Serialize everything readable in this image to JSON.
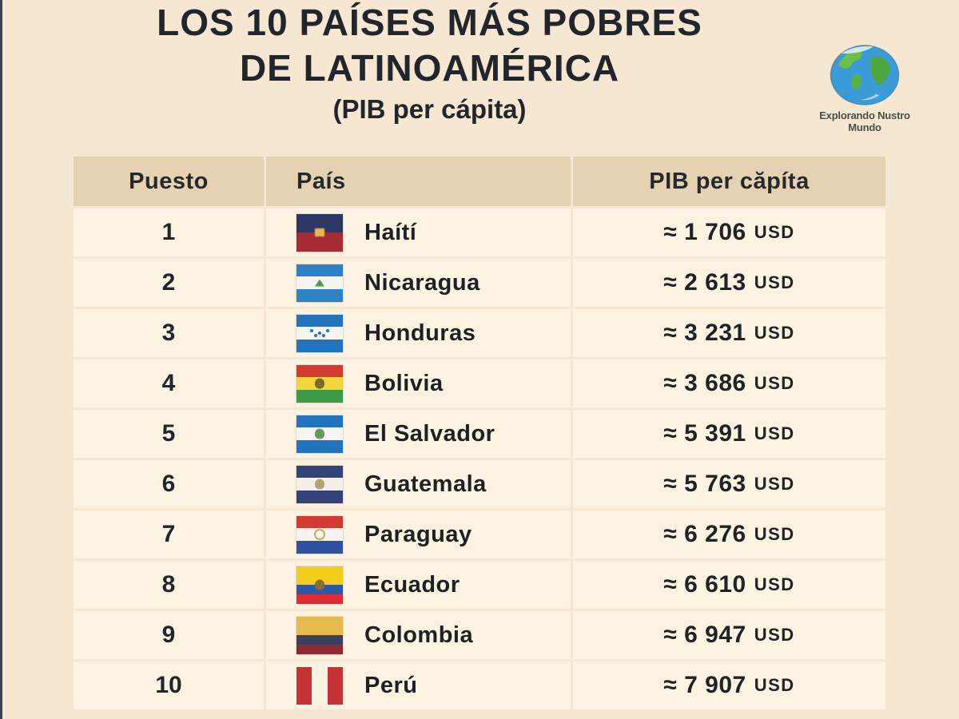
{
  "theme": {
    "page_bg": "#f5e7d2",
    "header_bg": "#e4d2b2",
    "cell_bg": "#fcf2e2",
    "text_color": "#23252d"
  },
  "header": {
    "title_line1": "LOS 10 PAÍSES MÁS POBRES",
    "title_line2": "DE LATINOAMÉRICA",
    "subtitle": "(PIB per cápita)",
    "logo": {
      "icon": "globe-earth-icon",
      "caption_line1": "Explorando Nustro",
      "caption_line2": "Mundo"
    }
  },
  "table": {
    "columns": [
      "Puesto",
      "País",
      "PIB per căpíta"
    ],
    "rows": [
      {
        "rank": "1",
        "country": "Haítí",
        "flag": "haiti",
        "value": "≈ 1 706",
        "currency": "USD"
      },
      {
        "rank": "2",
        "country": "Nicaragua",
        "flag": "nicaragua",
        "value": "≈ 2 613",
        "currency": "USD"
      },
      {
        "rank": "3",
        "country": "Honduras",
        "flag": "honduras",
        "value": "≈ 3 231",
        "currency": "USD"
      },
      {
        "rank": "4",
        "country": "Bolivia",
        "flag": "bolivia",
        "value": "≈ 3 686",
        "currency": "USD"
      },
      {
        "rank": "5",
        "country": "El Salvador",
        "flag": "el_salvador",
        "value": "≈ 5 391",
        "currency": "USD"
      },
      {
        "rank": "6",
        "country": "Guatemala",
        "flag": "guatemala",
        "value": "≈ 5 763",
        "currency": "USD"
      },
      {
        "rank": "7",
        "country": "Paraguay",
        "flag": "paraguay",
        "value": "≈ 6 276",
        "currency": "USD"
      },
      {
        "rank": "8",
        "country": "Ecuador",
        "flag": "ecuador",
        "value": "≈ 6 610",
        "currency": "USD"
      },
      {
        "rank": "9",
        "country": "Colombia",
        "flag": "colombia",
        "value": "≈ 6 947",
        "currency": "USD"
      },
      {
        "rank": "10",
        "country": "Perú",
        "flag": "peru",
        "value": "≈ 7 907",
        "currency": "USD"
      }
    ]
  },
  "flags": {
    "haiti": {
      "dir": "h",
      "stripes": [
        {
          "c": "#2c3763"
        },
        {
          "c": "#a62b34"
        }
      ],
      "emblem": {
        "shape": "rect",
        "color": "#e3b64e"
      }
    },
    "nicaragua": {
      "dir": "h",
      "stripes": [
        {
          "c": "#2e82c6"
        },
        {
          "c": "#f8f5ef"
        },
        {
          "c": "#2e82c6"
        }
      ],
      "emblem": {
        "shape": "triangle",
        "color": "#4f9a4c"
      }
    },
    "honduras": {
      "dir": "h",
      "stripes": [
        {
          "c": "#2374bf"
        },
        {
          "c": "#f8f5ef"
        },
        {
          "c": "#2374bf"
        }
      ],
      "emblem": {
        "shape": "stars",
        "color": "#2374bf"
      }
    },
    "bolivia": {
      "dir": "h",
      "stripes": [
        {
          "c": "#d53a2f"
        },
        {
          "c": "#f2d43b"
        },
        {
          "c": "#3d9a48"
        }
      ],
      "emblem": {
        "shape": "crest",
        "color": "#7c692f"
      }
    },
    "el_salvador": {
      "dir": "h",
      "stripes": [
        {
          "c": "#2173bd"
        },
        {
          "c": "#f8f5ef"
        },
        {
          "c": "#2173bd"
        }
      ],
      "emblem": {
        "shape": "crest",
        "color": "#6a9a5b"
      }
    },
    "guatemala": {
      "dir": "h",
      "stripes": [
        {
          "c": "#35417a"
        },
        {
          "c": "#f3efe8"
        },
        {
          "c": "#35417a"
        }
      ],
      "emblem": {
        "shape": "crest",
        "color": "#b2a678"
      }
    },
    "paraguay": {
      "dir": "h",
      "stripes": [
        {
          "c": "#d23c30"
        },
        {
          "c": "#f7f3ed"
        },
        {
          "c": "#31509f"
        }
      ],
      "emblem": {
        "shape": "ring",
        "color": "#b9b05e"
      }
    },
    "ecuador": {
      "dir": "h",
      "stripes": [
        {
          "c": "#f3cd1c",
          "w": 2
        },
        {
          "c": "#2b57a7",
          "w": 1
        },
        {
          "c": "#dd2c32",
          "w": 1
        }
      ],
      "emblem": {
        "shape": "crest",
        "color": "#8a6b33"
      }
    },
    "colombia": {
      "dir": "h",
      "stripes": [
        {
          "c": "#e5bb4e",
          "w": 2
        },
        {
          "c": "#39405e",
          "w": 1
        },
        {
          "c": "#8c2a33",
          "w": 1
        }
      ]
    },
    "peru": {
      "dir": "v",
      "noframe": true,
      "stripes": [
        {
          "c": "#c53134"
        },
        {
          "c": "#faf1e1"
        },
        {
          "c": "#c53134"
        }
      ]
    }
  },
  "chart_data": {
    "type": "table",
    "title": "LOS 10 PAÍSES MÁS POBRES DE LATINOAMÉRICA (PIB per cápita)",
    "columns": [
      "Puesto",
      "País",
      "PIB per cápita (USD)"
    ],
    "rows": [
      [
        1,
        "Haití",
        1706
      ],
      [
        2,
        "Nicaragua",
        2613
      ],
      [
        3,
        "Honduras",
        3231
      ],
      [
        4,
        "Bolivia",
        3686
      ],
      [
        5,
        "El Salvador",
        5391
      ],
      [
        6,
        "Guatemala",
        5763
      ],
      [
        7,
        "Paraguay",
        6276
      ],
      [
        8,
        "Ecuador",
        6610
      ],
      [
        9,
        "Colombia",
        6947
      ],
      [
        10,
        "Perú",
        7907
      ]
    ],
    "unit": "USD",
    "values_approximate": true,
    "order": "ascending by GDP per capita (poorest first)"
  }
}
